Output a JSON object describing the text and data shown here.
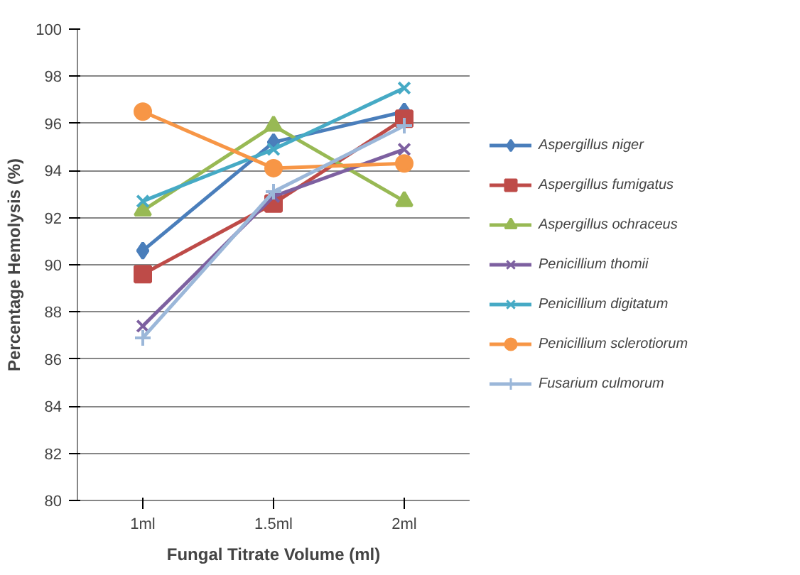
{
  "chart_data": {
    "type": "line",
    "xlabel": "Fungal Titrate Volume (ml)",
    "ylabel": "Percentage Hemolysis (%)",
    "categories": [
      "1ml",
      "1.5ml",
      "2ml"
    ],
    "ylim": [
      80,
      100
    ],
    "yticks": [
      80,
      82,
      84,
      86,
      88,
      90,
      92,
      94,
      96,
      98,
      100
    ],
    "grid": "y",
    "legend": "right",
    "series": [
      {
        "name": "Aspergillus niger",
        "color": "#4a7ebb",
        "marker": "diamond",
        "values": [
          90.6,
          95.2,
          96.5
        ]
      },
      {
        "name": "Aspergillus fumigatus",
        "color": "#be4b48",
        "marker": "square",
        "values": [
          89.6,
          92.6,
          96.2
        ]
      },
      {
        "name": "Aspergillus ochraceus",
        "color": "#98b954",
        "marker": "triangle",
        "values": [
          92.3,
          95.9,
          92.7
        ]
      },
      {
        "name": "Penicillium thomii",
        "color": "#7d60a0",
        "marker": "cross",
        "values": [
          87.4,
          92.9,
          94.9
        ]
      },
      {
        "name": "Penicillium digitatum",
        "color": "#46aac5",
        "marker": "cross",
        "values": [
          92.7,
          94.9,
          97.5
        ]
      },
      {
        "name": "Penicillium sclerotiorum",
        "color": "#f79646",
        "marker": "circle",
        "values": [
          96.5,
          94.1,
          94.3
        ]
      },
      {
        "name": "Fusarium culmorum",
        "color": "#9bb7d9",
        "marker": "plus",
        "values": [
          86.9,
          93.1,
          95.9
        ]
      }
    ]
  }
}
